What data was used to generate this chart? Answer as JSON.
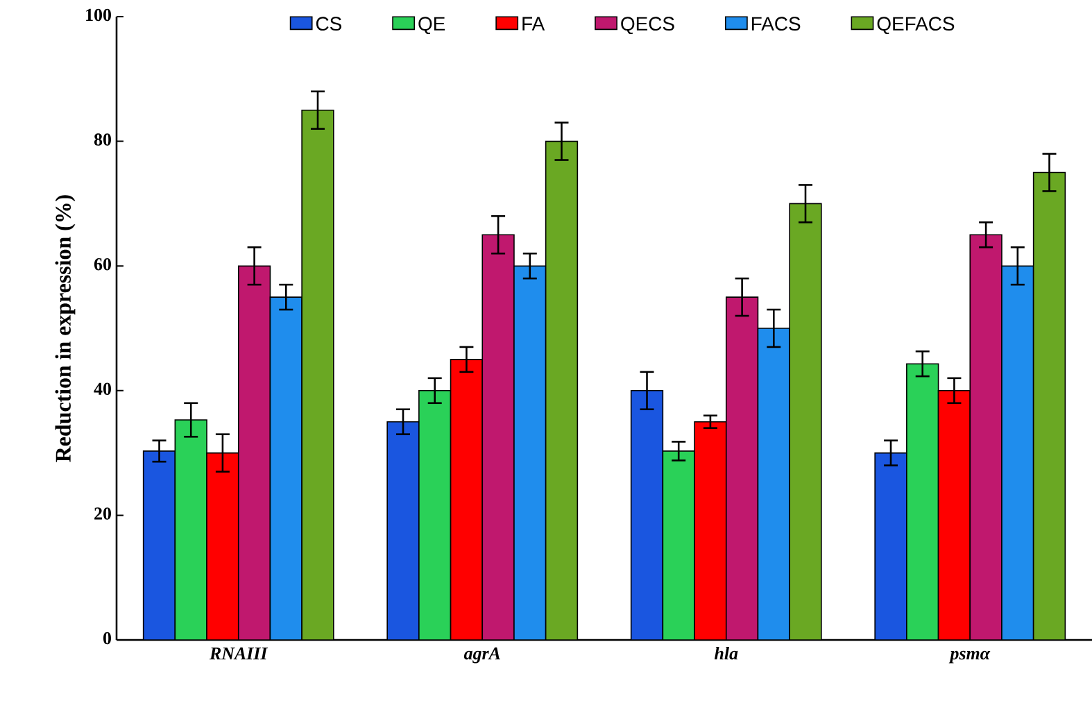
{
  "chart_data": {
    "type": "bar",
    "ylabel": "Reduction in expression (%)",
    "categories": [
      "RNAIII",
      "agrA",
      "hla",
      "psmα"
    ],
    "series": [
      {
        "name": "CS",
        "color": "#1a56e0",
        "values": [
          30.3,
          35,
          40,
          30
        ],
        "errors": [
          1.7,
          2,
          3,
          2
        ]
      },
      {
        "name": "QE",
        "color": "#2ad158",
        "values": [
          35.3,
          40,
          30.3,
          44.3
        ],
        "errors": [
          2.7,
          2,
          1.5,
          2
        ]
      },
      {
        "name": "FA",
        "color": "#ff0000",
        "values": [
          30,
          45,
          35,
          40
        ],
        "errors": [
          3,
          2,
          1,
          2
        ]
      },
      {
        "name": "QECS",
        "color": "#c0186e",
        "values": [
          60,
          65,
          55,
          65
        ],
        "errors": [
          3,
          3,
          3,
          2
        ]
      },
      {
        "name": "FACS",
        "color": "#1f8ded",
        "values": [
          55,
          60,
          50,
          60
        ],
        "errors": [
          2,
          2,
          3,
          3
        ]
      },
      {
        "name": "QEFACS",
        "color": "#6aa823",
        "values": [
          85,
          80,
          70,
          75
        ],
        "errors": [
          3,
          3,
          3,
          3
        ]
      }
    ],
    "ylim": [
      0,
      100
    ],
    "yticks": [
      0,
      20,
      40,
      60,
      80,
      100
    ],
    "grid": false,
    "legend": "top"
  }
}
